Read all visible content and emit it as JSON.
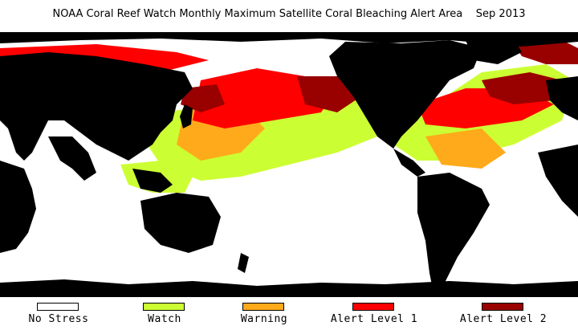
{
  "title": "NOAA Coral Reef Watch Monthly Maximum Satellite Coral Bleaching Alert Area    Sep 2013",
  "map": {
    "land_color": "#000000",
    "no_data_color": "#ffffff"
  },
  "legend": [
    {
      "label": "No Stress",
      "color": "#ffffff"
    },
    {
      "label": "Watch",
      "color": "#ccff33"
    },
    {
      "label": "Warning",
      "color": "#ffaa1a"
    },
    {
      "label": "Alert Level 1",
      "color": "#ff0000"
    },
    {
      "label": "Alert Level 2",
      "color": "#990000"
    }
  ]
}
